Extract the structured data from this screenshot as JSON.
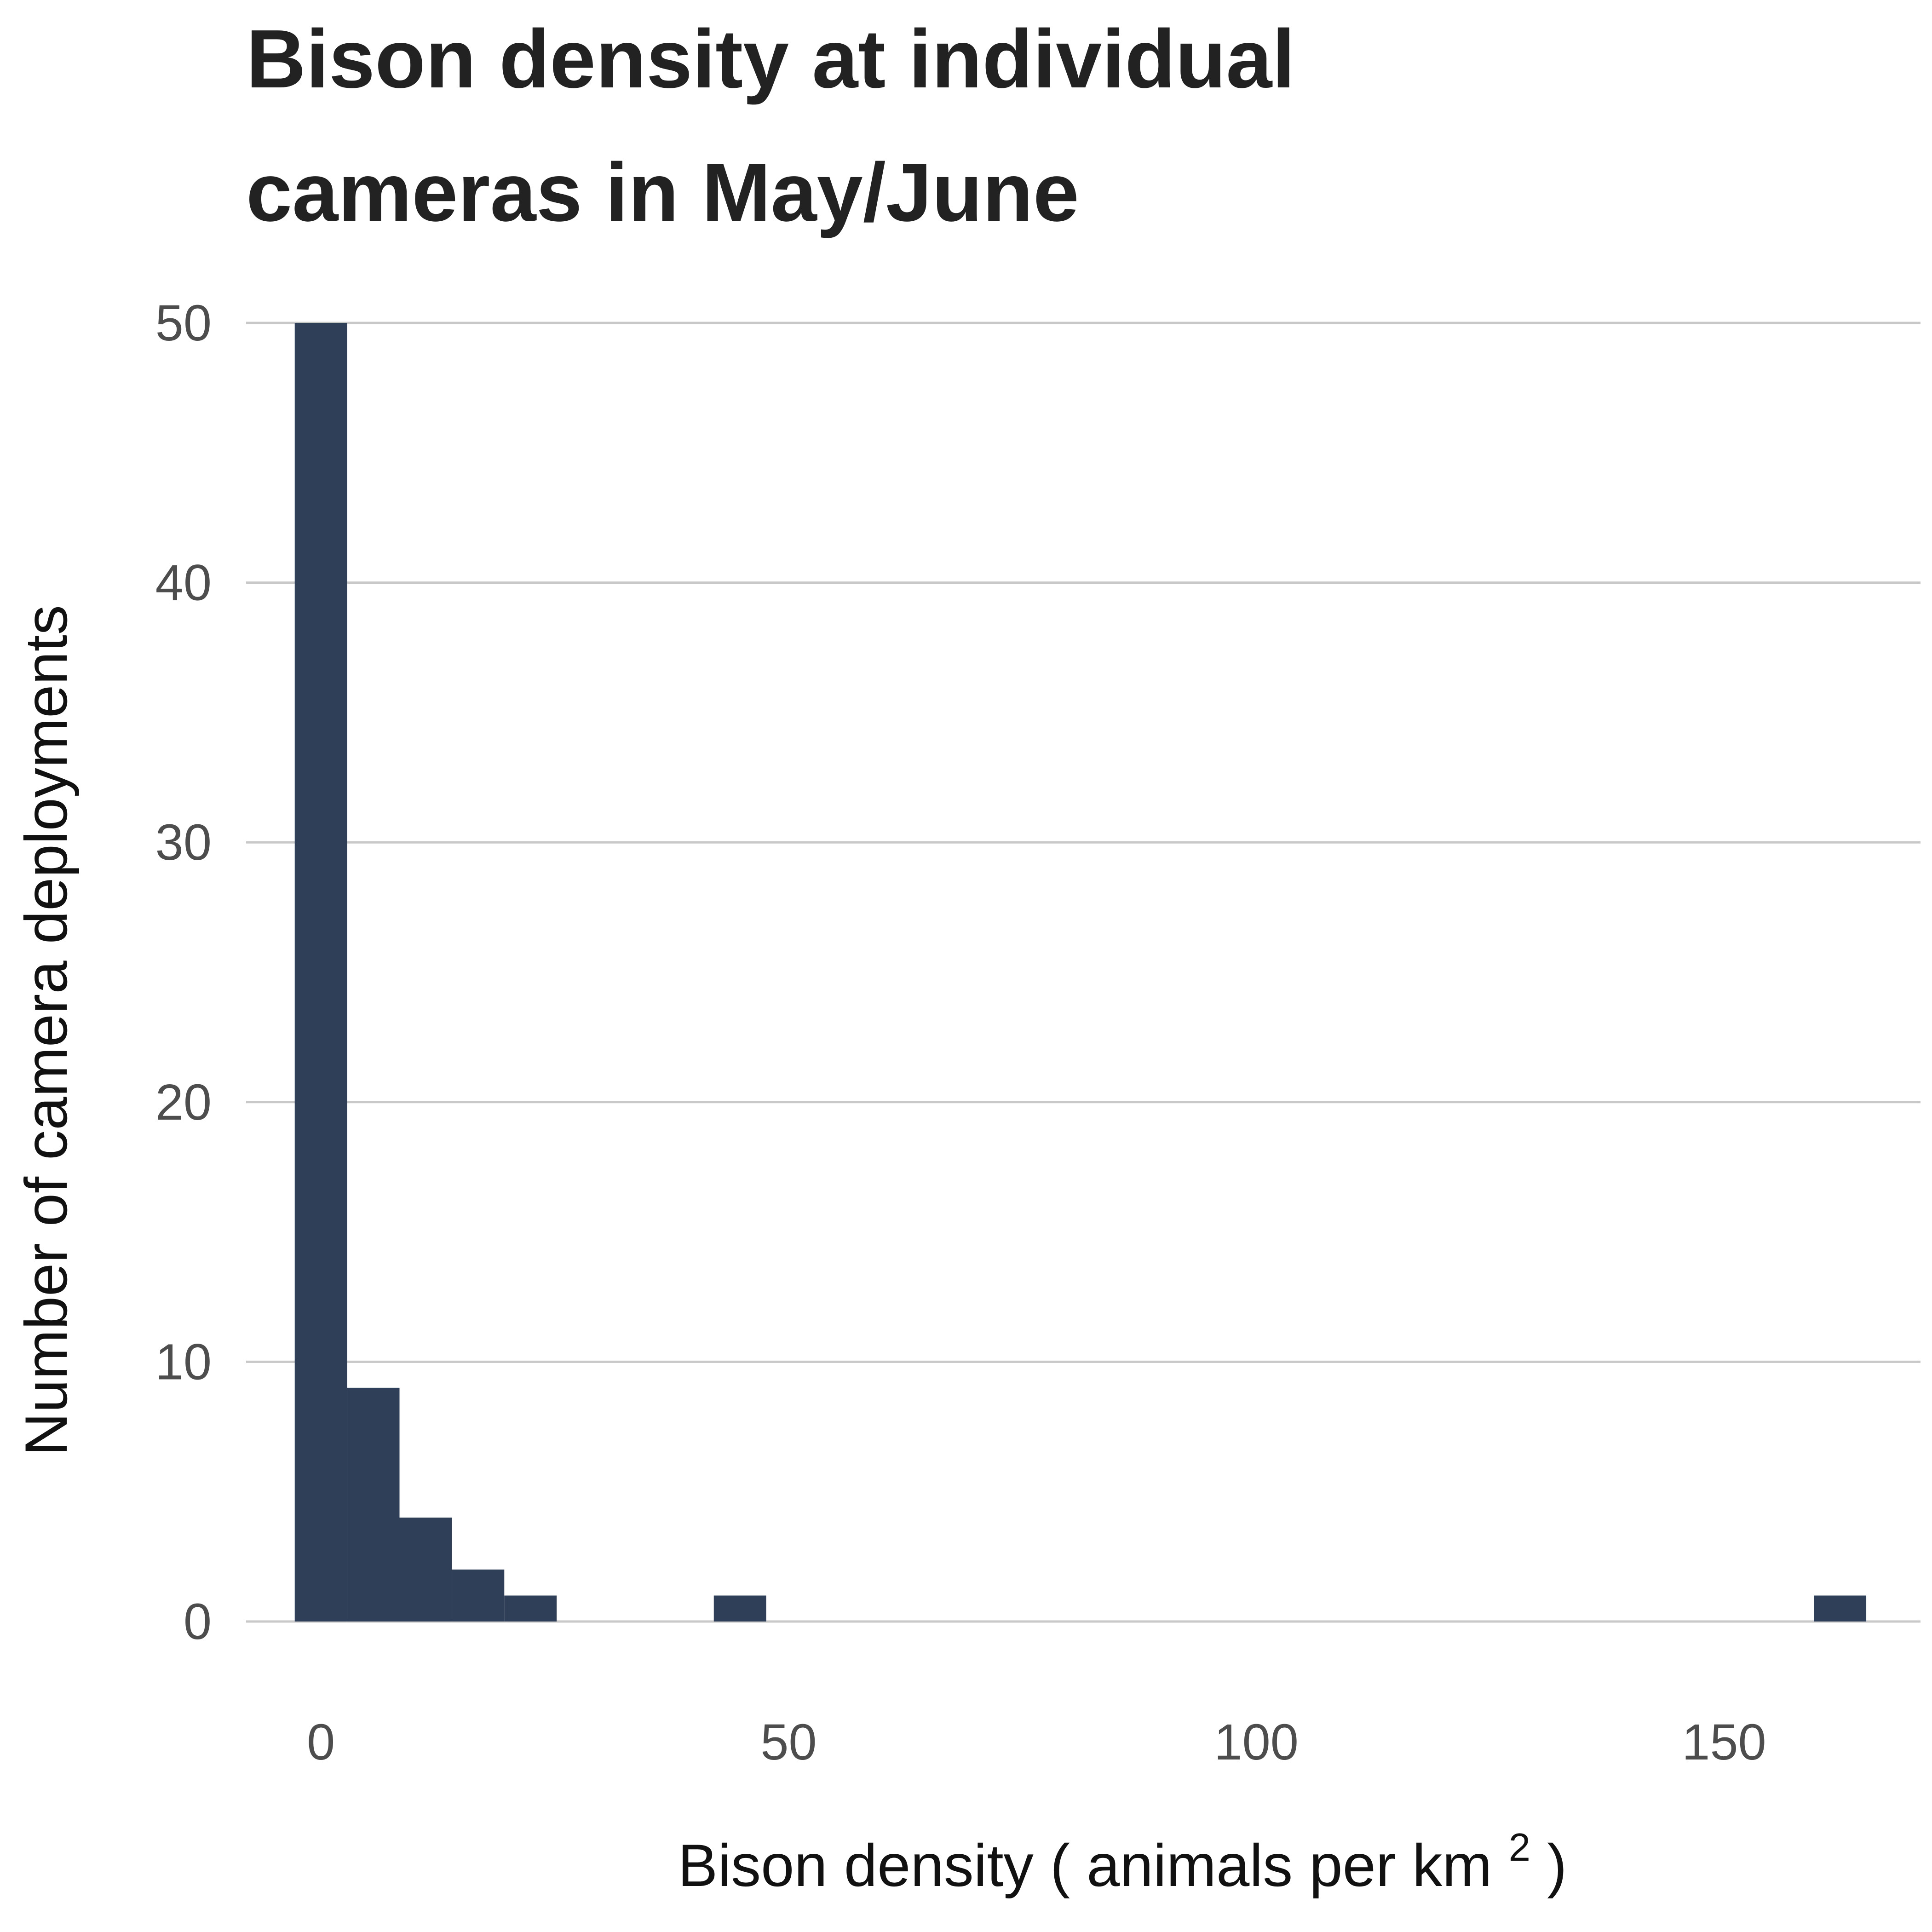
{
  "chart_data": {
    "type": "bar",
    "title_lines": [
      "Bison density at individual",
      "cameras in May/June"
    ],
    "xlabel": "Bison density",
    "xlabel_units": "animals per km",
    "xlabel_superscript": "2",
    "ylabel": "Number of camera deployments",
    "xlim": [
      -8,
      171
    ],
    "ylim": [
      0,
      50
    ],
    "x_ticks": [
      0,
      50,
      100,
      150
    ],
    "y_ticks": [
      0,
      10,
      20,
      30,
      40,
      50
    ],
    "grid": "horizontal",
    "bar_color": "#2e3f57",
    "bins": [
      {
        "x0": -2.8,
        "x1": 2.8,
        "count": 50
      },
      {
        "x0": 2.8,
        "x1": 8.4,
        "count": 9
      },
      {
        "x0": 8.4,
        "x1": 14.0,
        "count": 4
      },
      {
        "x0": 14.0,
        "x1": 19.6,
        "count": 2
      },
      {
        "x0": 19.6,
        "x1": 25.2,
        "count": 1
      },
      {
        "x0": 42.0,
        "x1": 47.6,
        "count": 1
      },
      {
        "x0": 159.6,
        "x1": 165.2,
        "count": 1
      }
    ]
  }
}
